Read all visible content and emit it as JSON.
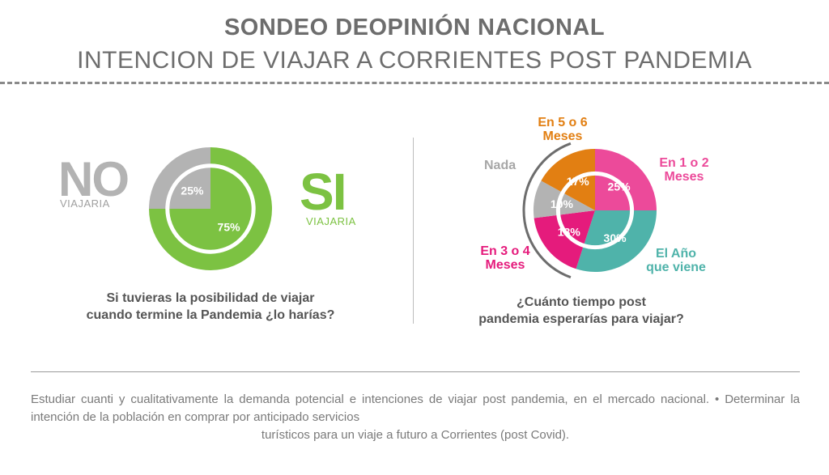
{
  "header": {
    "title": "SONDEO DEOPINIÓN NACIONAL",
    "subtitle": "INTENCION DE VIAJAR A CORRIENTES POST PANDEMIA"
  },
  "colors": {
    "green": "#7cc242",
    "grey": "#b3b3b3",
    "orange": "#e27f12",
    "pink": "#ec4a9a",
    "magenta": "#e51b7c",
    "teal": "#4fb3aa"
  },
  "chart_data": [
    {
      "type": "pie",
      "question": "Si tuvieras la posibilidad de viajar cuando termine la Pandemia ¿lo harías?",
      "categories": [
        "NO VIAJARIA",
        "SI VIAJARIA"
      ],
      "values": [
        25,
        75
      ],
      "value_labels": [
        "25%",
        "75%"
      ],
      "legend": {
        "no": {
          "word": "NO",
          "sub": "VIAJARIA"
        },
        "si": {
          "word": "SI",
          "sub": "VIAJARIA"
        }
      }
    },
    {
      "type": "pie",
      "question": "¿Cuánto tiempo post pandemia esperarías para viajar?",
      "categories": [
        "En 1 o 2 Meses",
        "El Año que viene",
        "En 3 o 4 Meses",
        "Nada",
        "En 5 o 6 Meses"
      ],
      "values": [
        25,
        30,
        18,
        10,
        17
      ],
      "value_labels": [
        "25%",
        "30%",
        "18%",
        "10%",
        "17%"
      ],
      "labels": {
        "en5o6": [
          "En 5 o 6",
          "Meses"
        ],
        "nada": "Nada",
        "en1o2": [
          "En 1 o 2",
          "Meses"
        ],
        "en3o4": [
          "En 3 o 4",
          "Meses"
        ],
        "ano": [
          "El Año",
          "que viene"
        ]
      }
    }
  ],
  "questions": {
    "q1": [
      "Si tuvieras la posibilidad de viajar",
      "cuando termine la Pandemia ¿lo harías?"
    ],
    "q2": [
      "¿Cuánto tiempo post",
      "pandemia esperarías para viajar?"
    ]
  },
  "footer": {
    "text": "Estudiar cuanti y cualitativamente la demanda potencial e intenciones de viajar post pandemia, en el mercado nacional. • Determinar la intención de la población en comprar por anticipado servicios",
    "last_line": "turísticos para un viaje a futuro a Corrientes (post Covid)."
  }
}
